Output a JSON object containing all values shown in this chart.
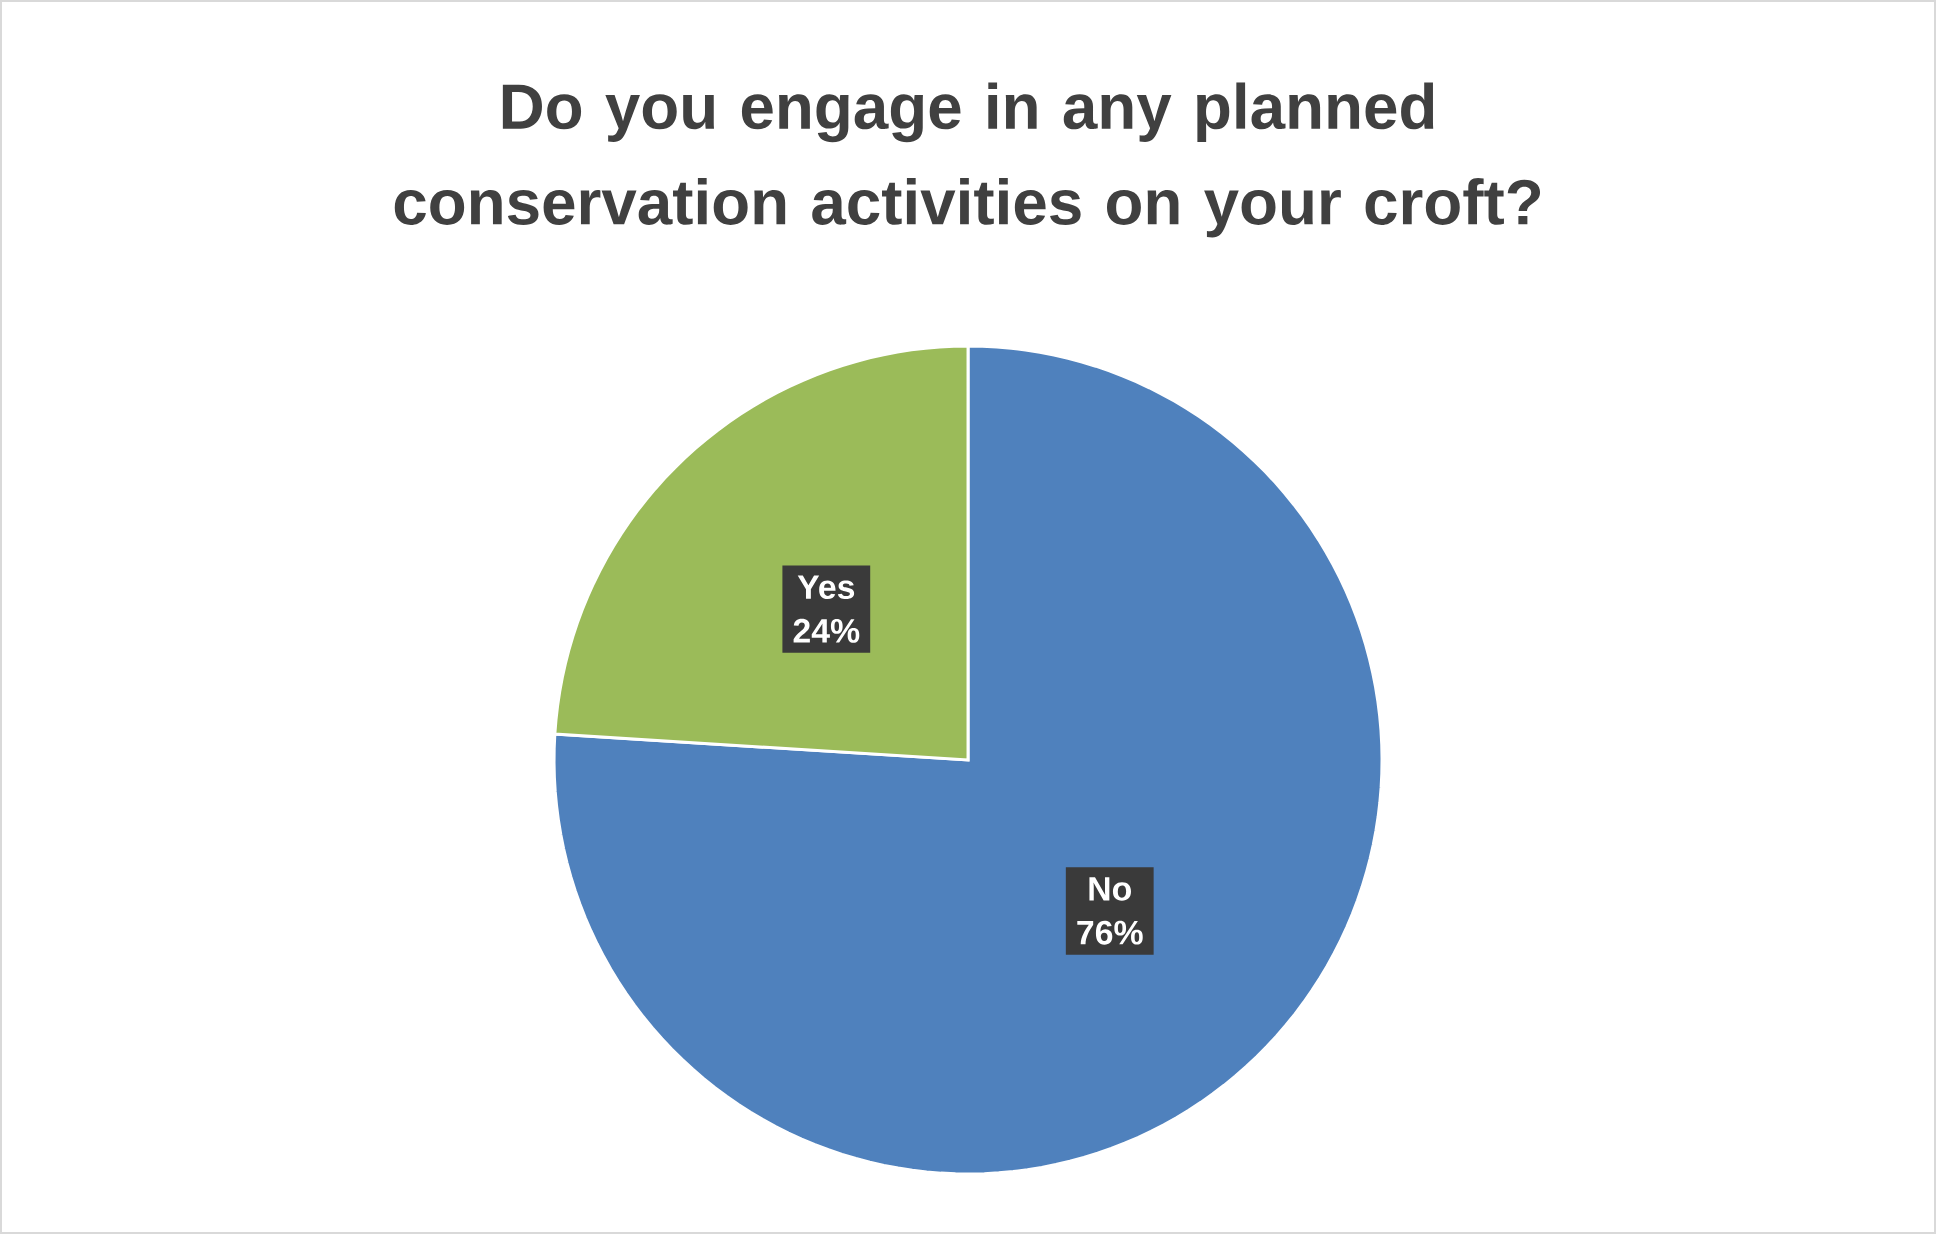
{
  "chart_data": {
    "type": "pie",
    "title": "Do you engage in any planned conservation activities on your croft?",
    "categories": [
      "No",
      "Yes"
    ],
    "values": [
      76,
      24
    ],
    "colors": [
      "#4f81bd",
      "#9bbb59"
    ],
    "value_labels": [
      "76%",
      "24%"
    ]
  }
}
